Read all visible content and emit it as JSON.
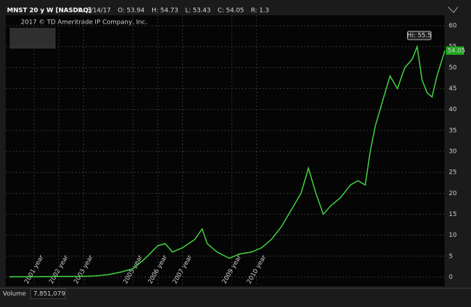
{
  "header": {
    "symbol": "MNST 20 y W [NASDAQ]",
    "fields": [
      "D: 8/14/17",
      "O: 53.94",
      "H: 54.73",
      "L: 53.43",
      "C: 54.05",
      "R: 1.3"
    ]
  },
  "watermark": "2017 © TD Ameritrade IP Company, Inc.",
  "footer": {
    "label": "Volume",
    "value": "7,851,079"
  },
  "chart_data": {
    "type": "line",
    "x": [
      2000,
      2001,
      2002,
      2003,
      2003.5,
      2004,
      2004.5,
      2005,
      2005.5,
      2006,
      2006.3,
      2006.6,
      2007,
      2007.5,
      2007.8,
      2008,
      2008.4,
      2008.9,
      2009.3,
      2009.8,
      2010.2,
      2010.6,
      2011,
      2011.4,
      2011.8,
      2012.1,
      2012.4,
      2012.7,
      2013,
      2013.4,
      2013.8,
      2014.1,
      2014.4,
      2014.6,
      2014.8,
      2015.1,
      2015.4,
      2015.7,
      2016,
      2016.3,
      2016.5,
      2016.7,
      2016.9,
      2017.1,
      2017.3,
      2017.62
    ],
    "series": [
      {
        "color": "#3fcf3f",
        "values": [
          0.1,
          0.1,
          0.15,
          0.2,
          0.3,
          0.6,
          1.2,
          2.0,
          4.5,
          7.5,
          8.0,
          6.0,
          7.0,
          9.0,
          11.5,
          8,
          6.0,
          4.5,
          5.5,
          6.0,
          7.0,
          9.0,
          12,
          16,
          20,
          26,
          20,
          15,
          17,
          19,
          22,
          23,
          22,
          30,
          36,
          42,
          48,
          45,
          50,
          52,
          55,
          47,
          44,
          43,
          48,
          54.05
        ]
      }
    ],
    "xlim": [
      1999.9,
      2017.75
    ],
    "xticks": [
      {
        "value": 2001,
        "label": "2001 year"
      },
      {
        "value": 2002,
        "label": "2002 year"
      },
      {
        "value": 2003,
        "label": "2003 year"
      },
      {
        "value": 2005,
        "label": "2005 year"
      },
      {
        "value": 2006,
        "label": "2006 year"
      },
      {
        "value": 2007,
        "label": "2007 year"
      },
      {
        "value": 2009,
        "label": "2009 year"
      },
      {
        "value": 2010,
        "label": "2010 year"
      }
    ],
    "ylim": [
      0,
      60
    ],
    "yticks": [
      0,
      5,
      10,
      15,
      20,
      25,
      30,
      35,
      40,
      45,
      50,
      55,
      60
    ],
    "grid": true,
    "annotation": "Hi: 55.5",
    "last_price": "54.05"
  }
}
